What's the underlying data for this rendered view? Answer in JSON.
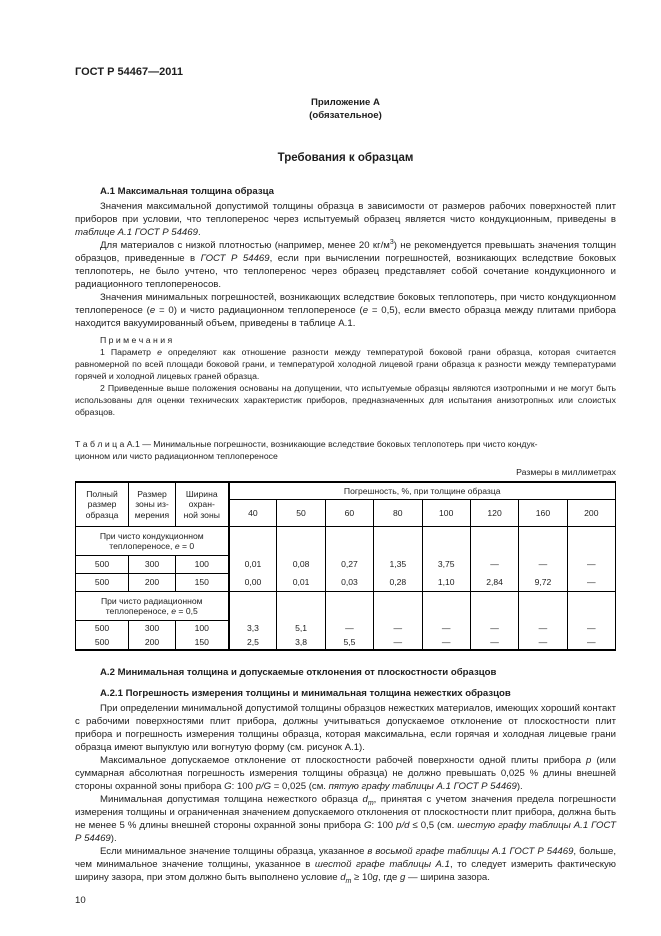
{
  "header": {
    "doc_code": "ГОСТ Р 54467—2011"
  },
  "appendix": {
    "label": "Приложение А",
    "kind": "(обязательное)",
    "title": "Требования к образцам"
  },
  "headings": {
    "a1": "А.1 Максимальная толщина образца",
    "a2": "А.2 Минимальная толщина и допускаемые отклонения от плоскостности образцов",
    "a21": "А.2.1 Погрешность измерения толщины и минимальная толщина нежестких образцов"
  },
  "paragraphs": {
    "p1": [
      {
        "t": "Значения максимальной допустимой толщины образца в зависимости от размеров рабочих поверхностей плит приборов при условии, что теплоперенос через испытуемый образец является чисто кондукционным, приведены в "
      },
      {
        "t": "таблице А.1 ГОСТ Р 54469",
        "i": true
      },
      {
        "t": "."
      }
    ],
    "p2": [
      {
        "t": "Для материалов с низкой плотностью (например, менее 20 кг/м"
      },
      {
        "t": "3",
        "sup": true
      },
      {
        "t": ") не рекомендуется превышать значения толщин образцов, приведенные в "
      },
      {
        "t": "ГОСТ Р 54469",
        "i": true
      },
      {
        "t": ", если при вычислении погрешностей, возникающих вследствие боковых теплопотерь, не было учтено, что теплоперенос через образец представляет собой сочетание кондукционного и радиационного теплопереносов."
      }
    ],
    "p3": [
      {
        "t": "Значения минимальных погрешностей, возникающих вследствие боковых теплопотерь, при чисто кондукционном теплопереносе ("
      },
      {
        "t": "е",
        "i": true
      },
      {
        "t": " = 0) и чисто радиационном теплопереносе ("
      },
      {
        "t": "е",
        "i": true
      },
      {
        "t": " = 0,5), если вместо образца между плитами прибора находится вакуумированный объем, приведены в таблице А.1."
      }
    ],
    "notes_label": "П р и м е ч а н и я",
    "note1": [
      {
        "t": "1 Параметр "
      },
      {
        "t": "е",
        "i": true
      },
      {
        "t": " определяют как отношение разности между температурой боковой грани образца, которая считается равномерной по всей площади боковой грани, и температурой холодной лицевой грани образца к разности между температурами горячей и холодной лицевых граней образца."
      }
    ],
    "note2": "2 Приведенные выше положения основаны на допущении, что испытуемые образцы являются изотропными и не могут быть использованы для оценки технических характеристик приборов, предназначенных для испытания анизотропных или слоистых образцов.",
    "p4": "При определении минимальной допустимой толщины образцов нежестких материалов, имеющих хороший контакт с рабочими поверхностями плит прибора, должны учитываться допускаемое отклонение от плоскостности плит прибора и погрешность измерения толщины образца, которая максимальна, если горячая и холодная лицевые грани образца имеют выпуклую или вогнутую форму (см. рисунок А.1).",
    "p5": [
      {
        "t": "Максимальное допускаемое отклонение от плоскостности рабочей поверхности одной плиты прибора "
      },
      {
        "t": "p",
        "i": true
      },
      {
        "t": " (или суммарная абсолютная погрешность измерения толщины образца) не должно превышать 0,025 % длины внешней стороны охранной зоны прибора "
      },
      {
        "t": "G",
        "i": true
      },
      {
        "t": ": 100 "
      },
      {
        "t": "p/G",
        "i": true
      },
      {
        "t": " = 0,025 (см. "
      },
      {
        "t": "пятую графу таблицы А.1 ГОСТ Р 54469",
        "i": true
      },
      {
        "t": ")."
      }
    ],
    "p6": [
      {
        "t": "Минимальная допустимая толщина нежесткого образца "
      },
      {
        "t": "d",
        "i": true
      },
      {
        "t": "m",
        "sub": true,
        "i": true
      },
      {
        "t": ", принятая с учетом значения предела погрешности измерения толщины и ограниченная значением допускаемого отклонения от плоскостности плит прибора, должна быть не менее 5 % длины внешней стороны охранной зоны прибора "
      },
      {
        "t": "G",
        "i": true
      },
      {
        "t": ": 100 "
      },
      {
        "t": "p/d",
        "i": true
      },
      {
        "t": " ≤ 0,5 (см. "
      },
      {
        "t": "шестую графу таблицы А.1 ГОСТ Р 54469",
        "i": true
      },
      {
        "t": ")."
      }
    ],
    "p7": [
      {
        "t": "Если минимальное значение толщины образца, указанное "
      },
      {
        "t": "в восьмой графе таблицы А.1 ГОСТ Р 54469",
        "i": true
      },
      {
        "t": ", больше, чем минимальное значение толщины, указанное в "
      },
      {
        "t": "шестой графе таблицы А.1",
        "i": true
      },
      {
        "t": ", то следует измерить фактическую ширину зазора, при этом должно быть выполнено условие "
      },
      {
        "t": "d",
        "i": true
      },
      {
        "t": "m",
        "sub": true,
        "i": true
      },
      {
        "t": " ≥ 10"
      },
      {
        "t": "g",
        "i": true
      },
      {
        "t": ", где "
      },
      {
        "t": "g",
        "i": true
      },
      {
        "t": " — ширина зазора."
      }
    ]
  },
  "table": {
    "caption": "Т а б л и ц а   А.1 — Минимальные погрешности, возникающие вследствие боковых теплопотерь при чисто кондук-\nционном или чисто радиационном теплопереносе",
    "units_note": "Размеры в миллиметрах",
    "stub_headers": [
      "Полный\nразмер\nобразца",
      "Размер\nзоны из-\nмерения",
      "Ширина\nохран-\nной зоны"
    ],
    "span_header": "Погрешность, %, при толщине образца",
    "thickness": [
      "40",
      "50",
      "60",
      "80",
      "100",
      "120",
      "160",
      "200"
    ],
    "group1_label": [
      {
        "t": "При чисто кондукционном\nтеплопереносе, "
      },
      {
        "t": "е",
        "i": true
      },
      {
        "t": " = 0"
      }
    ],
    "group2_label": [
      {
        "t": "При чисто радиационном\nтеплопереносе, "
      },
      {
        "t": "е",
        "i": true
      },
      {
        "t": " = 0,5"
      }
    ],
    "rows": [
      {
        "c1": "500",
        "c2": "300",
        "c3": "100",
        "v": [
          "0,01",
          "0,08",
          "0,27",
          "1,35",
          "3,75",
          "—",
          "—",
          "—"
        ]
      },
      {
        "c1": "500",
        "c2": "200",
        "c3": "150",
        "v": [
          "0,00",
          "0,01",
          "0,03",
          "0,28",
          "1,10",
          "2,84",
          "9,72",
          "—"
        ]
      },
      {
        "c1": "500",
        "c2": "300",
        "c3": "100",
        "v": [
          "3,3",
          "5,1",
          "—",
          "—",
          "—",
          "—",
          "—",
          "—"
        ]
      },
      {
        "c1": "500",
        "c2": "200",
        "c3": "150",
        "v": [
          "2,5",
          "3,8",
          "5,5",
          "—",
          "—",
          "—",
          "—",
          "—"
        ]
      }
    ]
  },
  "chart_data": {
    "type": "table",
    "title": "Таблица А.1 — Минимальные погрешности, возникающие вследствие боковых теплопотерь при чисто кондукционном или чисто радиационном теплопереносе",
    "units": "Размеры в миллиметрах",
    "columns": [
      "Полный размер образца",
      "Размер зоны измерения",
      "Ширина охранной зоны",
      "40",
      "50",
      "60",
      "80",
      "100",
      "120",
      "160",
      "200"
    ],
    "sections": [
      {
        "label": "При чисто кондукционном теплопереносе, е = 0",
        "rows": [
          [
            500,
            300,
            100,
            "0,01",
            "0,08",
            "0,27",
            "1,35",
            "3,75",
            "—",
            "—",
            "—"
          ],
          [
            500,
            200,
            150,
            "0,00",
            "0,01",
            "0,03",
            "0,28",
            "1,10",
            "2,84",
            "9,72",
            "—"
          ]
        ]
      },
      {
        "label": "При чисто радиационном теплопереносе, е = 0,5",
        "rows": [
          [
            500,
            300,
            100,
            "3,3",
            "5,1",
            "—",
            "—",
            "—",
            "—",
            "—",
            "—"
          ],
          [
            500,
            200,
            150,
            "2,5",
            "3,8",
            "5,5",
            "—",
            "—",
            "—",
            "—",
            "—"
          ]
        ]
      }
    ]
  },
  "footer": {
    "page_number": "10"
  }
}
